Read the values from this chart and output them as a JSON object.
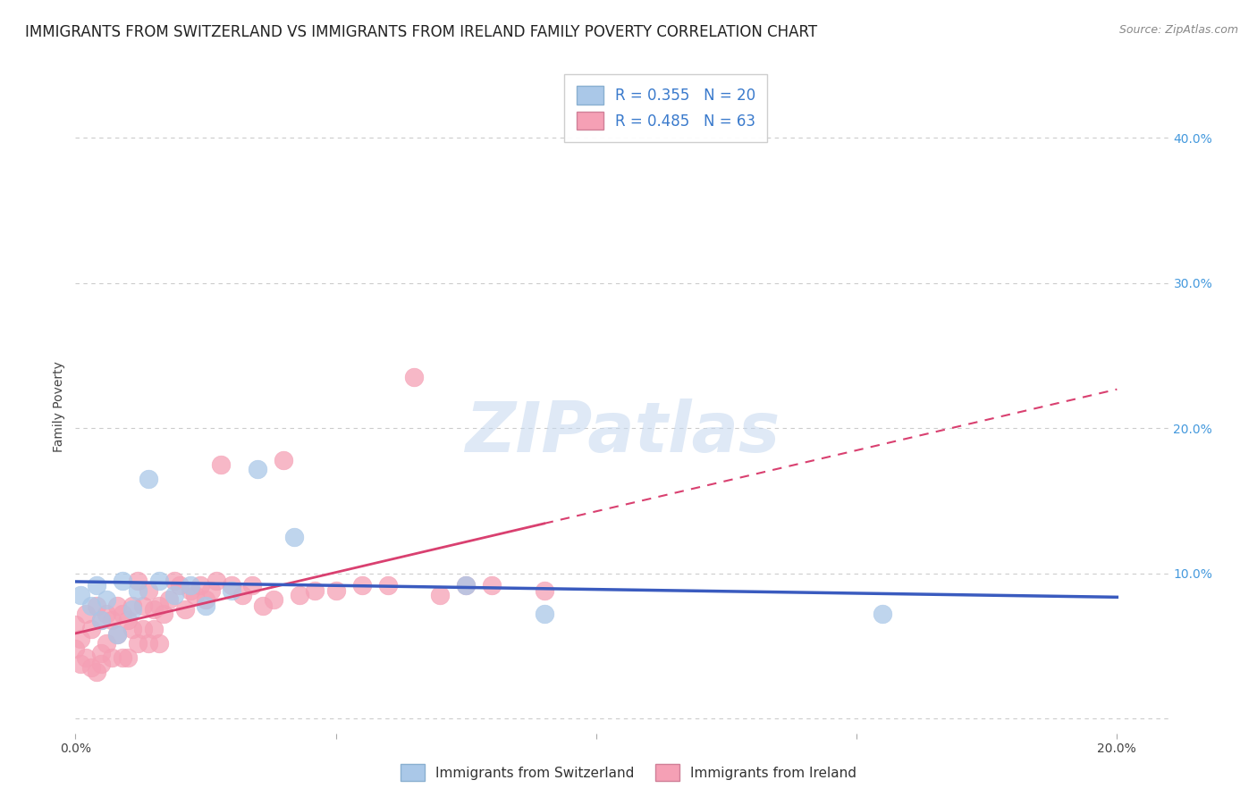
{
  "title": "IMMIGRANTS FROM SWITZERLAND VS IMMIGRANTS FROM IRELAND FAMILY POVERTY CORRELATION CHART",
  "source": "Source: ZipAtlas.com",
  "ylabel": "Family Poverty",
  "xlim": [
    0.0,
    0.21
  ],
  "ylim": [
    -0.01,
    0.44
  ],
  "xticks": [
    0.0,
    0.05,
    0.1,
    0.15,
    0.2
  ],
  "yticks": [
    0.0,
    0.1,
    0.2,
    0.3,
    0.4
  ],
  "background_color": "#ffffff",
  "grid_color": "#cccccc",
  "swiss_color": "#aac8e8",
  "swiss_edge_color": "#aac8e8",
  "swiss_line_color": "#3a5bbf",
  "swiss_R": 0.355,
  "swiss_N": 20,
  "swiss_x": [
    0.001,
    0.003,
    0.004,
    0.005,
    0.006,
    0.008,
    0.009,
    0.011,
    0.012,
    0.014,
    0.016,
    0.019,
    0.022,
    0.025,
    0.03,
    0.035,
    0.042,
    0.075,
    0.09,
    0.155
  ],
  "swiss_y": [
    0.085,
    0.078,
    0.092,
    0.068,
    0.082,
    0.058,
    0.095,
    0.075,
    0.088,
    0.165,
    0.095,
    0.085,
    0.092,
    0.078,
    0.088,
    0.172,
    0.125,
    0.092,
    0.072,
    0.072
  ],
  "ireland_color": "#f5a0b5",
  "ireland_edge_color": "#f5a0b5",
  "ireland_line_color": "#d94070",
  "ireland_R": 0.485,
  "ireland_N": 63,
  "ireland_x": [
    0.0,
    0.0,
    0.001,
    0.001,
    0.002,
    0.002,
    0.003,
    0.003,
    0.004,
    0.004,
    0.005,
    0.005,
    0.005,
    0.006,
    0.006,
    0.007,
    0.007,
    0.008,
    0.008,
    0.009,
    0.009,
    0.01,
    0.01,
    0.011,
    0.011,
    0.012,
    0.012,
    0.013,
    0.013,
    0.014,
    0.014,
    0.015,
    0.015,
    0.016,
    0.016,
    0.017,
    0.018,
    0.019,
    0.02,
    0.021,
    0.022,
    0.023,
    0.024,
    0.025,
    0.026,
    0.027,
    0.028,
    0.03,
    0.032,
    0.034,
    0.036,
    0.038,
    0.04,
    0.043,
    0.046,
    0.05,
    0.055,
    0.06,
    0.065,
    0.07,
    0.075,
    0.08,
    0.09
  ],
  "ireland_y": [
    0.048,
    0.065,
    0.055,
    0.038,
    0.042,
    0.072,
    0.035,
    0.062,
    0.078,
    0.032,
    0.068,
    0.045,
    0.038,
    0.052,
    0.072,
    0.042,
    0.068,
    0.058,
    0.078,
    0.072,
    0.042,
    0.068,
    0.042,
    0.062,
    0.078,
    0.052,
    0.095,
    0.078,
    0.062,
    0.088,
    0.052,
    0.062,
    0.075,
    0.078,
    0.052,
    0.072,
    0.082,
    0.095,
    0.092,
    0.075,
    0.088,
    0.085,
    0.092,
    0.082,
    0.088,
    0.095,
    0.175,
    0.092,
    0.085,
    0.092,
    0.078,
    0.082,
    0.178,
    0.085,
    0.088,
    0.088,
    0.092,
    0.092,
    0.235,
    0.085,
    0.092,
    0.092,
    0.088
  ],
  "legend_swiss_label": "R = 0.355   N = 20",
  "legend_ireland_label": "R = 0.485   N = 63",
  "legend_bottom_swiss": "Immigrants from Switzerland",
  "legend_bottom_ireland": "Immigrants from Ireland",
  "title_fontsize": 12,
  "axis_label_fontsize": 10,
  "tick_fontsize": 10,
  "legend_fontsize": 12
}
